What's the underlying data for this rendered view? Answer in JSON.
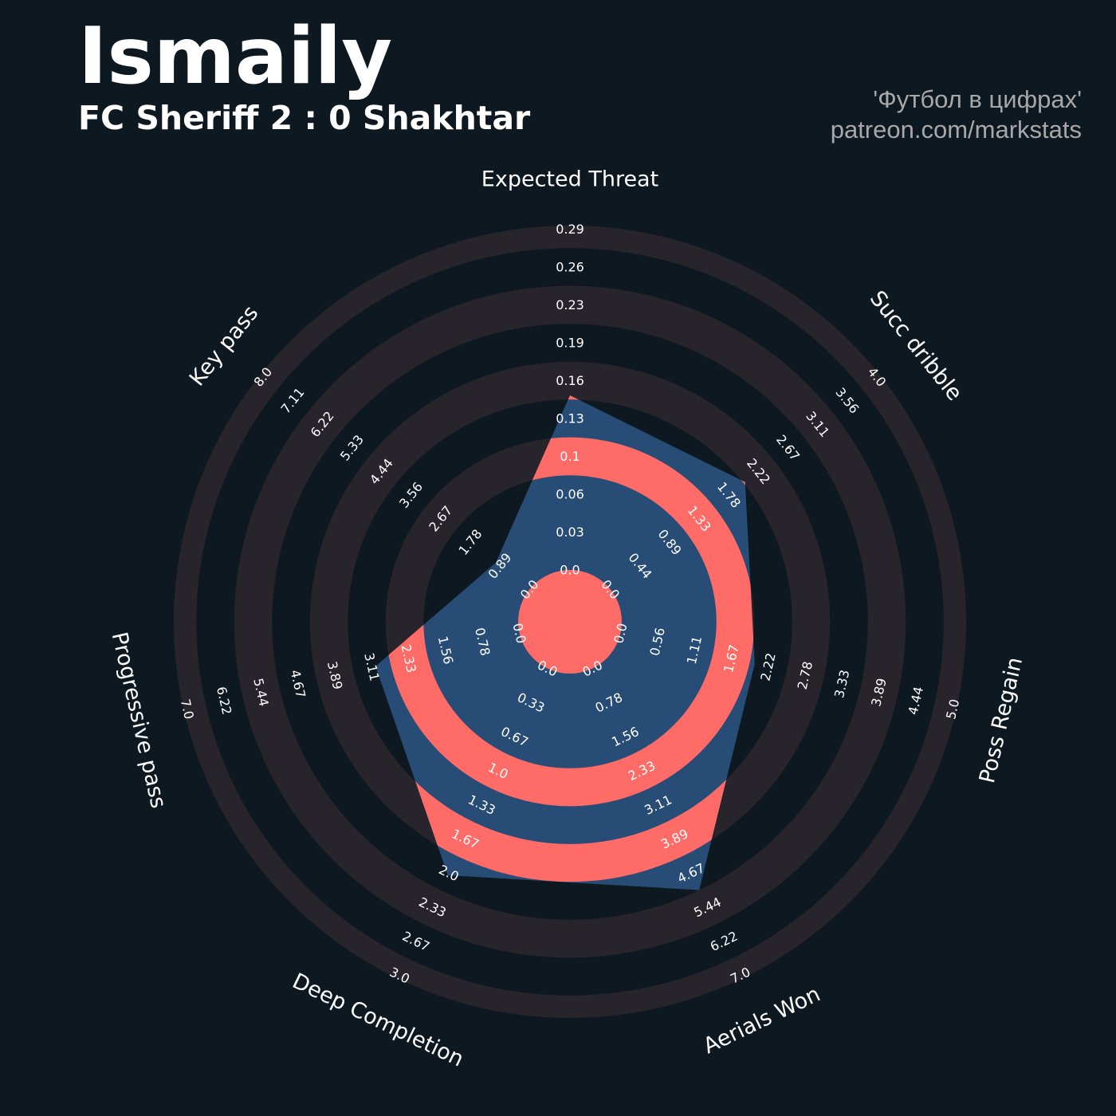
{
  "header": {
    "title": "Ismaily",
    "subtitle": "FC Sheriff 2 : 0 Shakhtar"
  },
  "credits": {
    "line1": "'Футбол в цифрах'",
    "line2": "patreon.com/markstats"
  },
  "colors": {
    "background": "#0e1820",
    "ring_dark": "#28242b",
    "ring_light": "#0e1820",
    "player_fill": "#274c76",
    "highlight": "#ff6b67",
    "text": "#ffffff",
    "credit_text": "#a8a8aa"
  },
  "chart_data": {
    "type": "radar",
    "title": "Ismaily",
    "subtitle": "FC Sheriff 2 : 0 Shakhtar",
    "grid": true,
    "axes": [
      {
        "name": "Expected Threat",
        "min": 0.0,
        "max": 0.29,
        "value": 0.147,
        "ticks": [
          "0.0",
          "0.03",
          "0.06",
          "0.1",
          "0.13",
          "0.16",
          "0.19",
          "0.23",
          "0.26",
          "0.29"
        ]
      },
      {
        "name": "Succ dribble",
        "min": 0.0,
        "max": 4.0,
        "value": 2.0,
        "ticks": [
          "0.0",
          "0.44",
          "0.89",
          "1.33",
          "1.78",
          "2.22",
          "2.67",
          "3.11",
          "3.56",
          "4.0"
        ]
      },
      {
        "name": "Poss Regain",
        "min": 0.0,
        "max": 5.0,
        "value": 2.0,
        "ticks": [
          "0.0",
          "0.56",
          "1.11",
          "1.67",
          "2.22",
          "2.78",
          "3.33",
          "3.89",
          "4.44",
          "5.0"
        ]
      },
      {
        "name": "Aerials Won",
        "min": 0.0,
        "max": 7.0,
        "value": 5.0,
        "ticks": [
          "0.0",
          "0.78",
          "1.56",
          "2.33",
          "3.11",
          "3.89",
          "4.67",
          "5.44",
          "6.22",
          "7.0"
        ]
      },
      {
        "name": "Deep Completion",
        "min": 0.0,
        "max": 3.0,
        "value": 2.0,
        "ticks": [
          "0.0",
          "0.33",
          "0.67",
          "1.0",
          "1.33",
          "1.67",
          "2.0",
          "2.33",
          "2.67",
          "3.0"
        ]
      },
      {
        "name": "Progressive pass",
        "min": 0.0,
        "max": 7.0,
        "value": 3.0,
        "ticks": [
          "0.0",
          "0.78",
          "1.56",
          "2.33",
          "3.11",
          "3.89",
          "4.67",
          "5.44",
          "6.22",
          "7.0"
        ]
      },
      {
        "name": "Key pass",
        "min": 0.0,
        "max": 8.0,
        "value": 1.0,
        "ticks": [
          "0.0",
          "0.89",
          "1.78",
          "2.67",
          "3.56",
          "4.44",
          "5.33",
          "6.22",
          "7.11",
          "8.0"
        ]
      }
    ]
  }
}
